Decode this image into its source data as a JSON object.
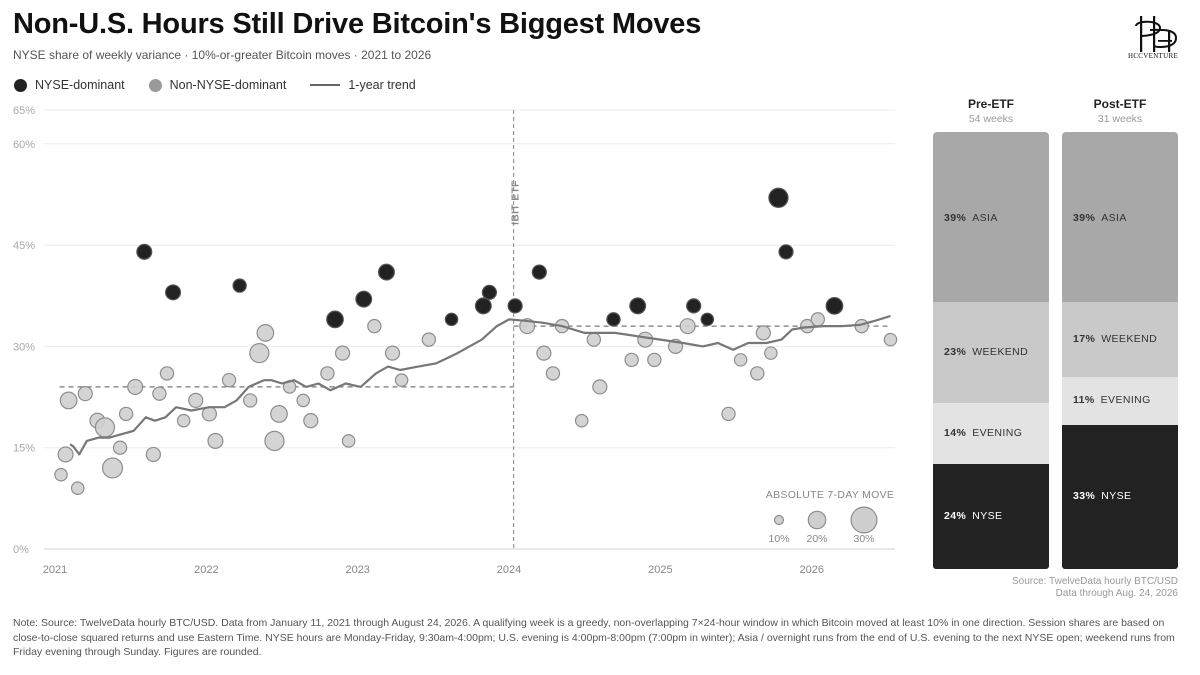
{
  "header": {
    "title": "Non-U.S. Hours Still Drive Bitcoin's Biggest Moves",
    "subtitle": "NYSE share of weekly variance · 10%-or-greater Bitcoin moves · 2021 to 2026",
    "logo_text": "HCCVENTURE"
  },
  "legend": {
    "nyse": "NYSE-dominant",
    "non_nyse": "Non-NYSE-dominant",
    "trend": "1-year trend"
  },
  "colors": {
    "nyse_dot": "#222222",
    "non_nyse_dot": "#cfcfcf",
    "trend_line": "#777777",
    "asia": "#a8a8a8",
    "weekend": "#c9c9c9",
    "evening": "#e3e3e3",
    "nyse_segment": "#222222"
  },
  "chart_data": [
    {
      "type": "scatter",
      "ylim": [
        0,
        65
      ],
      "xlim": [
        2021,
        2026.55
      ],
      "y_ticks": [
        "0%",
        "15%",
        "30%",
        "45%",
        "60%",
        "65%"
      ],
      "y_tick_values": [
        0,
        15,
        30,
        45,
        60,
        65
      ],
      "x_ticks": [
        "2021",
        "2022",
        "2023",
        "2024",
        "2025",
        "2026"
      ],
      "x_tick_values": [
        2021,
        2022,
        2023,
        2024,
        2025,
        2026
      ],
      "event_line": {
        "x": 2024.03,
        "label": "IBIT ETF"
      },
      "reference_lines": [
        {
          "x": [
            2021.03,
            2024.03
          ],
          "y": 24
        },
        {
          "x": [
            2024.03,
            2026.5
          ],
          "y": 33
        }
      ],
      "size_legend": {
        "title": "ABSOLUTE 7-DAY MOVE",
        "labels": [
          "10%",
          "20%",
          "30%"
        ],
        "values": [
          10,
          20,
          30
        ]
      },
      "series": [
        {
          "name": "NYSE-dominant",
          "points": [
            {
              "x": 2021.59,
              "y": 44,
              "m": 17
            },
            {
              "x": 2021.78,
              "y": 38,
              "m": 17
            },
            {
              "x": 2022.22,
              "y": 39,
              "m": 15
            },
            {
              "x": 2022.85,
              "y": 34,
              "m": 19
            },
            {
              "x": 2023.04,
              "y": 37,
              "m": 18
            },
            {
              "x": 2023.19,
              "y": 41,
              "m": 18
            },
            {
              "x": 2023.62,
              "y": 34,
              "m": 14
            },
            {
              "x": 2023.83,
              "y": 36,
              "m": 18
            },
            {
              "x": 2023.87,
              "y": 38,
              "m": 16
            },
            {
              "x": 2024.04,
              "y": 36,
              "m": 16
            },
            {
              "x": 2024.2,
              "y": 41,
              "m": 16
            },
            {
              "x": 2024.69,
              "y": 34,
              "m": 15
            },
            {
              "x": 2024.85,
              "y": 36,
              "m": 18
            },
            {
              "x": 2025.22,
              "y": 36,
              "m": 16
            },
            {
              "x": 2025.31,
              "y": 34,
              "m": 14
            },
            {
              "x": 2025.78,
              "y": 52,
              "m": 22
            },
            {
              "x": 2025.83,
              "y": 44,
              "m": 16
            },
            {
              "x": 2026.15,
              "y": 36,
              "m": 19
            }
          ]
        },
        {
          "name": "Non-NYSE-dominant",
          "points": [
            {
              "x": 2021.04,
              "y": 11,
              "m": 14
            },
            {
              "x": 2021.07,
              "y": 14,
              "m": 17
            },
            {
              "x": 2021.09,
              "y": 22,
              "m": 19
            },
            {
              "x": 2021.15,
              "y": 9,
              "m": 14
            },
            {
              "x": 2021.2,
              "y": 23,
              "m": 16
            },
            {
              "x": 2021.28,
              "y": 19,
              "m": 17
            },
            {
              "x": 2021.33,
              "y": 18,
              "m": 22
            },
            {
              "x": 2021.38,
              "y": 12,
              "m": 23
            },
            {
              "x": 2021.43,
              "y": 15,
              "m": 15
            },
            {
              "x": 2021.47,
              "y": 20,
              "m": 15
            },
            {
              "x": 2021.53,
              "y": 24,
              "m": 17
            },
            {
              "x": 2021.65,
              "y": 14,
              "m": 16
            },
            {
              "x": 2021.69,
              "y": 23,
              "m": 15
            },
            {
              "x": 2021.74,
              "y": 26,
              "m": 15
            },
            {
              "x": 2021.85,
              "y": 19,
              "m": 14
            },
            {
              "x": 2021.93,
              "y": 22,
              "m": 16
            },
            {
              "x": 2022.02,
              "y": 20,
              "m": 16
            },
            {
              "x": 2022.06,
              "y": 16,
              "m": 17
            },
            {
              "x": 2022.15,
              "y": 25,
              "m": 15
            },
            {
              "x": 2022.29,
              "y": 22,
              "m": 15
            },
            {
              "x": 2022.35,
              "y": 29,
              "m": 22
            },
            {
              "x": 2022.39,
              "y": 32,
              "m": 19
            },
            {
              "x": 2022.45,
              "y": 16,
              "m": 22
            },
            {
              "x": 2022.48,
              "y": 20,
              "m": 19
            },
            {
              "x": 2022.55,
              "y": 24,
              "m": 14
            },
            {
              "x": 2022.64,
              "y": 22,
              "m": 14
            },
            {
              "x": 2022.69,
              "y": 19,
              "m": 16
            },
            {
              "x": 2022.8,
              "y": 26,
              "m": 15
            },
            {
              "x": 2022.9,
              "y": 29,
              "m": 16
            },
            {
              "x": 2022.94,
              "y": 16,
              "m": 14
            },
            {
              "x": 2023.11,
              "y": 33,
              "m": 15
            },
            {
              "x": 2023.23,
              "y": 29,
              "m": 16
            },
            {
              "x": 2023.29,
              "y": 25,
              "m": 14
            },
            {
              "x": 2023.47,
              "y": 31,
              "m": 15
            },
            {
              "x": 2024.12,
              "y": 33,
              "m": 17
            },
            {
              "x": 2024.23,
              "y": 29,
              "m": 16
            },
            {
              "x": 2024.29,
              "y": 26,
              "m": 15
            },
            {
              "x": 2024.35,
              "y": 33,
              "m": 15
            },
            {
              "x": 2024.48,
              "y": 19,
              "m": 14
            },
            {
              "x": 2024.56,
              "y": 31,
              "m": 15
            },
            {
              "x": 2024.6,
              "y": 24,
              "m": 16
            },
            {
              "x": 2024.81,
              "y": 28,
              "m": 15
            },
            {
              "x": 2024.9,
              "y": 31,
              "m": 17
            },
            {
              "x": 2024.96,
              "y": 28,
              "m": 15
            },
            {
              "x": 2025.1,
              "y": 30,
              "m": 16
            },
            {
              "x": 2025.18,
              "y": 33,
              "m": 17
            },
            {
              "x": 2025.45,
              "y": 20,
              "m": 15
            },
            {
              "x": 2025.53,
              "y": 28,
              "m": 14
            },
            {
              "x": 2025.64,
              "y": 26,
              "m": 15
            },
            {
              "x": 2025.68,
              "y": 32,
              "m": 16
            },
            {
              "x": 2025.73,
              "y": 29,
              "m": 14
            },
            {
              "x": 2025.97,
              "y": 33,
              "m": 15
            },
            {
              "x": 2026.04,
              "y": 34,
              "m": 15
            },
            {
              "x": 2026.33,
              "y": 33,
              "m": 15
            },
            {
              "x": 2026.52,
              "y": 31,
              "m": 14
            }
          ]
        },
        {
          "name": "1-year trend",
          "type": "line",
          "points": [
            [
              2021.1,
              15.5
            ],
            [
              2021.12,
              15.2
            ],
            [
              2021.16,
              14
            ],
            [
              2021.21,
              16
            ],
            [
              2021.29,
              16.5
            ],
            [
              2021.36,
              16.5
            ],
            [
              2021.44,
              17
            ],
            [
              2021.52,
              17.5
            ],
            [
              2021.6,
              19.5
            ],
            [
              2021.66,
              19
            ],
            [
              2021.73,
              19.5
            ],
            [
              2021.8,
              21
            ],
            [
              2021.9,
              20.5
            ],
            [
              2022.02,
              21
            ],
            [
              2022.12,
              21
            ],
            [
              2022.2,
              22
            ],
            [
              2022.28,
              24
            ],
            [
              2022.38,
              25
            ],
            [
              2022.43,
              25
            ],
            [
              2022.5,
              24.5
            ],
            [
              2022.58,
              25
            ],
            [
              2022.66,
              24
            ],
            [
              2022.74,
              24.5
            ],
            [
              2022.82,
              23.5
            ],
            [
              2022.92,
              24.5
            ],
            [
              2023.02,
              24
            ],
            [
              2023.12,
              26
            ],
            [
              2023.2,
              27
            ],
            [
              2023.28,
              26.5
            ],
            [
              2023.4,
              27
            ],
            [
              2023.52,
              27.5
            ],
            [
              2023.66,
              29
            ],
            [
              2023.82,
              31
            ],
            [
              2023.92,
              33
            ],
            [
              2024.0,
              34
            ],
            [
              2024.1,
              33.8
            ],
            [
              2024.22,
              33.5
            ],
            [
              2024.35,
              33
            ],
            [
              2024.5,
              32
            ],
            [
              2024.7,
              32
            ],
            [
              2024.85,
              31.5
            ],
            [
              2025.0,
              31
            ],
            [
              2025.15,
              30.5
            ],
            [
              2025.28,
              30
            ],
            [
              2025.38,
              30.5
            ],
            [
              2025.48,
              29.5
            ],
            [
              2025.58,
              30.5
            ],
            [
              2025.7,
              30.5
            ],
            [
              2025.8,
              31
            ],
            [
              2025.87,
              32.5
            ],
            [
              2025.95,
              32.8
            ],
            [
              2026.08,
              33
            ],
            [
              2026.2,
              33
            ],
            [
              2026.32,
              33.2
            ],
            [
              2026.42,
              33.8
            ],
            [
              2026.52,
              34.5
            ]
          ]
        }
      ]
    },
    {
      "type": "bar",
      "stacked": true,
      "categories": [
        "Pre-ETF",
        "Post-ETF"
      ],
      "category_subtitles": [
        "54 weeks",
        "31 weeks"
      ],
      "series": [
        {
          "name": "NYSE",
          "values": [
            24,
            33
          ]
        },
        {
          "name": "EVENING",
          "values": [
            14,
            11
          ]
        },
        {
          "name": "WEEKEND",
          "values": [
            23,
            17
          ]
        },
        {
          "name": "ASIA",
          "values": [
            39,
            39
          ]
        }
      ],
      "segment_labels": {
        "pre": {
          "nyse": "24%",
          "evening": "14%",
          "weekend": "23%",
          "asia": "39%"
        },
        "post": {
          "nyse": "33%",
          "evening": "11%",
          "weekend": "17%",
          "asia": "39%"
        }
      }
    }
  ],
  "source": {
    "line1": "Source: TwelveData hourly BTC/USD",
    "line2": "Data through Aug. 24, 2026"
  },
  "note": "Note: Source: TwelveData hourly BTC/USD. Data from January 11, 2021 through August 24, 2026. A qualifying week is a greedy, non-overlapping 7×24-hour window in which Bitcoin moved at least 10% in one direction. Session shares are based on close-to-close squared returns and use Eastern Time. NYSE hours are Monday-Friday, 9:30am-4:00pm; U.S. evening is 4:00pm-8:00pm (7:00pm in winter); Asia / overnight runs from the end of U.S. evening to the next NYSE open; weekend runs from Friday evening through Sunday. Figures are rounded."
}
